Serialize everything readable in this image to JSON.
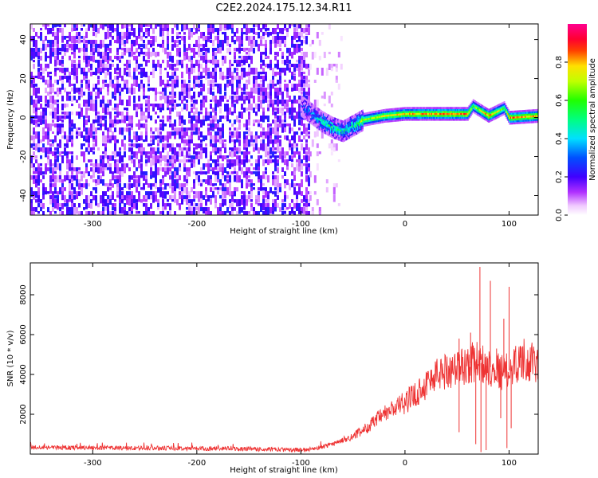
{
  "title": "C2E2.2024.175.12.34.R11",
  "chart_data": [
    {
      "type": "heatmap",
      "xlabel": "Height of straight line (km)",
      "ylabel": "Frequency (Hz)",
      "xlim": [
        -360,
        128
      ],
      "ylim": [
        -50,
        48
      ],
      "x_ticks": [
        -300,
        -200,
        -100,
        0,
        100
      ],
      "y_ticks": [
        -40,
        -20,
        0,
        20,
        40
      ],
      "colorbar": {
        "label": "Normalized spectral amplitude",
        "range": [
          0.0,
          1.0
        ],
        "ticks": [
          0.0,
          0.2,
          0.4,
          0.6,
          0.8
        ],
        "tick_labels": [
          "0.0",
          "0.2",
          "0.4",
          "0.6",
          "0.8"
        ],
        "colormap": "hsv: white → violet → blue → cyan → green → yellow → red → magenta"
      },
      "regions": [
        {
          "desc": "dense speckled noise",
          "x_range": [
            -360,
            -92
          ],
          "y_range": [
            -50,
            48
          ],
          "amplitude": [
            0.05,
            0.25
          ]
        },
        {
          "desc": "sparse speckle",
          "x_range": [
            -92,
            -60
          ],
          "y_range": [
            -50,
            48
          ],
          "amplitude": [
            0.02,
            0.1
          ]
        },
        {
          "desc": "narrow signal band",
          "x_range": [
            -100,
            128
          ],
          "center_frequency_hz": 0,
          "amplitude": [
            0.2,
            0.9
          ]
        }
      ],
      "signal_ridge": {
        "x": [
          -100,
          -90,
          -80,
          -70,
          -60,
          -50,
          -40,
          -20,
          0,
          20,
          40,
          60,
          65,
          80,
          95,
          100,
          128
        ],
        "center_hz": [
          6,
          2,
          -2,
          -5,
          -7,
          -4,
          -1,
          1,
          2,
          2,
          2,
          2,
          6,
          1,
          5,
          0,
          1
        ],
        "peak_amplitude": [
          0.2,
          0.35,
          0.45,
          0.5,
          0.4,
          0.5,
          0.65,
          0.75,
          0.8,
          0.82,
          0.85,
          0.85,
          0.6,
          0.85,
          0.6,
          0.85,
          0.8
        ]
      }
    },
    {
      "type": "line",
      "xlabel": "Height of straight line (km)",
      "ylabel": "SNR (10 * v/v)",
      "xlim": [
        -360,
        128
      ],
      "ylim": [
        0,
        9600
      ],
      "x_ticks": [
        -300,
        -200,
        -100,
        0,
        100
      ],
      "y_ticks": [
        2000,
        4000,
        6000,
        8000
      ],
      "color": "#ee3333",
      "series": [
        {
          "x": [
            -360,
            -330,
            -300,
            -270,
            -240,
            -210,
            -180,
            -150,
            -120,
            -100,
            -90,
            -80,
            -70,
            -60,
            -50,
            -40,
            -30,
            -20,
            -10,
            0,
            10,
            20,
            30,
            40,
            50,
            55,
            60,
            65,
            70,
            75,
            80,
            85,
            90,
            95,
            100,
            105,
            110,
            115,
            120,
            128
          ],
          "y": [
            350,
            330,
            320,
            300,
            300,
            290,
            280,
            260,
            230,
            200,
            250,
            350,
            500,
            700,
            900,
            1200,
            1600,
            2000,
            2300,
            2600,
            3000,
            3500,
            4000,
            4200,
            4300,
            4400,
            4500,
            4600,
            4700,
            4500,
            4400,
            4300,
            4200,
            4100,
            4200,
            4500,
            4700,
            4800,
            4600,
            4500
          ]
        }
      ],
      "spikes": [
        {
          "x": 52,
          "y": 5800
        },
        {
          "x": 52,
          "y": 1100
        },
        {
          "x": 63,
          "y": 6100
        },
        {
          "x": 68,
          "y": 500
        },
        {
          "x": 72,
          "y": 9400
        },
        {
          "x": 73,
          "y": 100
        },
        {
          "x": 78,
          "y": 200
        },
        {
          "x": 82,
          "y": 8700
        },
        {
          "x": 88,
          "y": 5300
        },
        {
          "x": 92,
          "y": 1800
        },
        {
          "x": 95,
          "y": 6800
        },
        {
          "x": 98,
          "y": 300
        },
        {
          "x": 100,
          "y": 8400
        },
        {
          "x": 102,
          "y": 1300
        }
      ]
    }
  ]
}
